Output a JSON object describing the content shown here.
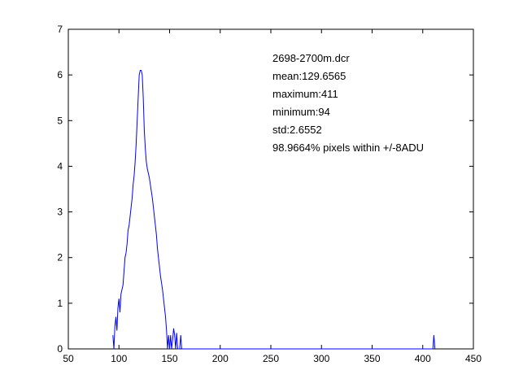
{
  "chart_data": {
    "type": "line",
    "title": "",
    "xlabel": "",
    "ylabel": "",
    "xlim": [
      50,
      450
    ],
    "ylim": [
      0,
      7
    ],
    "xticks": [
      50,
      100,
      150,
      200,
      250,
      300,
      350,
      400,
      450
    ],
    "yticks": [
      0,
      1,
      2,
      3,
      4,
      5,
      6,
      7
    ],
    "grid": false,
    "line_color": "#0000ff",
    "annotations": [
      "2698-2700m.dcr",
      "mean:129.6565",
      "maximum:411",
      "minimum:94",
      "std:2.6552",
      "98.9664% pixels within +/-8ADU"
    ],
    "series": [
      {
        "x": [
          94,
          95,
          96,
          97,
          98,
          99,
          100,
          101,
          102,
          103,
          104,
          105,
          106,
          107,
          108,
          109,
          110,
          111,
          112,
          113,
          114,
          115,
          116,
          117,
          118,
          119,
          120,
          121,
          122,
          123,
          124,
          125,
          126,
          127,
          128,
          129,
          130,
          131,
          132,
          133,
          134,
          135,
          136,
          137,
          138,
          139,
          140,
          141,
          142,
          143,
          144,
          145,
          146,
          147,
          148,
          149,
          150,
          151,
          152,
          153,
          154,
          155,
          156,
          157,
          158,
          159,
          160,
          161,
          162,
          163,
          164,
          165,
          166,
          167,
          168,
          169,
          170,
          171,
          172,
          173,
          174,
          175,
          176,
          177,
          178,
          179,
          180,
          181,
          182,
          183,
          184,
          185,
          186,
          400,
          410,
          411,
          412
        ],
        "y": [
          0.3,
          0.0,
          0.5,
          0.7,
          0.4,
          0.9,
          1.1,
          0.8,
          1.2,
          1.3,
          1.4,
          1.7,
          2.0,
          2.1,
          2.3,
          2.6,
          2.7,
          2.9,
          3.1,
          3.3,
          3.6,
          3.8,
          4.1,
          4.5,
          5.0,
          5.5,
          6.0,
          6.1,
          6.1,
          6.0,
          5.5,
          4.8,
          4.4,
          4.1,
          3.95,
          3.85,
          3.75,
          3.6,
          3.45,
          3.3,
          3.1,
          2.9,
          2.7,
          2.5,
          2.2,
          2.0,
          1.8,
          1.6,
          1.45,
          1.3,
          1.1,
          0.9,
          0.7,
          0.4,
          0.0,
          0.3,
          0.0,
          0.3,
          0.0,
          0.2,
          0.45,
          0.3,
          0.0,
          0.35,
          0.0,
          0.0,
          0.0,
          0.3,
          0.0,
          0.0,
          0.0,
          0.0,
          0.0,
          0.0,
          0.0,
          0.0,
          0.0,
          0.0,
          0.0,
          0.0,
          0.0,
          0.0,
          0.0,
          0.0,
          0.0,
          0.0,
          0.0,
          0.0,
          0.0,
          0.0,
          0.0,
          0.0,
          0.0,
          0.0,
          0.0,
          0.3,
          0.0
        ]
      }
    ]
  }
}
